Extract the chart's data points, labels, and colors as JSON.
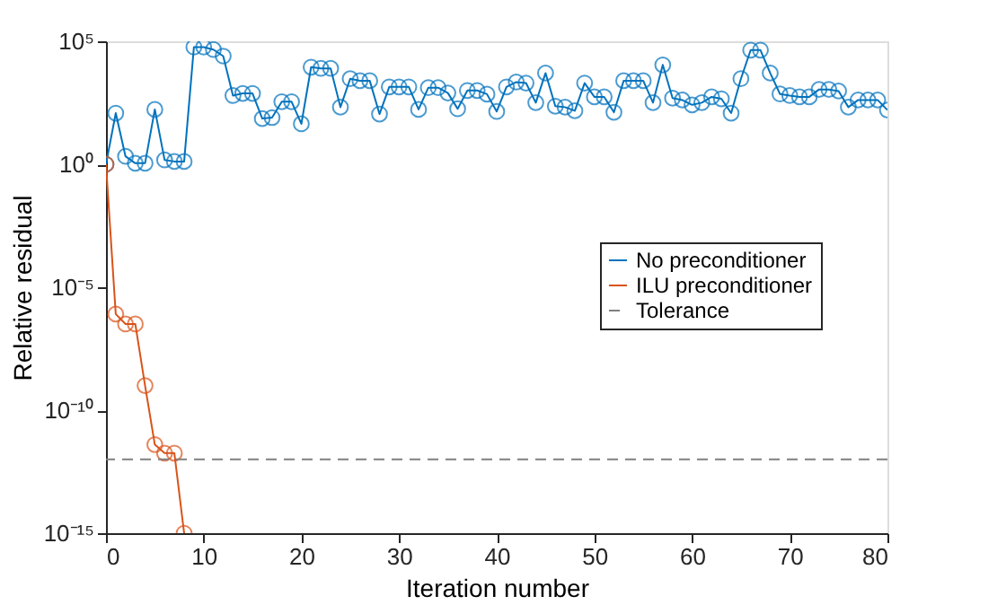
{
  "chart_data": {
    "type": "line",
    "xlabel": "Iteration number",
    "ylabel": "Relative residual",
    "log": "y",
    "grid": false,
    "legend": "right",
    "marker": "circle",
    "xlim": [
      0,
      80
    ],
    "xticks": [
      0,
      10,
      20,
      30,
      40,
      50,
      60,
      70,
      80
    ],
    "ylim": [
      1e-15,
      100000.0
    ],
    "yticks": [
      {
        "value": 1e-15,
        "label": "10⁻¹⁵"
      },
      {
        "value": 1e-10,
        "label": "10⁻¹⁰"
      },
      {
        "value": 1e-05,
        "label": "10⁻⁵"
      },
      {
        "value": 1,
        "label": "10⁰"
      },
      {
        "value": 100000.0,
        "label": "10⁵"
      }
    ],
    "series": [
      {
        "name": "No preconditioner",
        "color": "#0072bd",
        "x": [
          0,
          1,
          2,
          3,
          4,
          5,
          6,
          7,
          8,
          9,
          10,
          11,
          12,
          13,
          14,
          15,
          16,
          17,
          18,
          19,
          20,
          21,
          22,
          23,
          24,
          25,
          26,
          27,
          28,
          29,
          30,
          31,
          32,
          33,
          34,
          35,
          36,
          37,
          38,
          39,
          40,
          41,
          42,
          43,
          44,
          45,
          46,
          47,
          48,
          49,
          50,
          51,
          52,
          53,
          54,
          55,
          56,
          57,
          58,
          59,
          60,
          61,
          62,
          63,
          64,
          65,
          66,
          67,
          68,
          69,
          70,
          71,
          72,
          73,
          74,
          75,
          76,
          77,
          78,
          79,
          80
        ],
        "values": [
          1,
          120,
          2.1,
          1.1,
          1.1,
          170,
          1.5,
          1.3,
          1.3,
          58000,
          58000,
          46000,
          25000,
          620,
          760,
          760,
          72,
          79,
          350,
          350,
          44,
          8900,
          7900,
          7900,
          210,
          3000,
          2500,
          2500,
          110,
          1400,
          1400,
          1400,
          170,
          1300,
          1300,
          790,
          180,
          1000,
          1000,
          710,
          140,
          1400,
          2200,
          2000,
          320,
          5100,
          230,
          210,
          150,
          2000,
          550,
          550,
          130,
          2500,
          2500,
          2500,
          320,
          11000,
          490,
          410,
          260,
          320,
          550,
          460,
          120,
          3000,
          44000,
          44000,
          5100,
          720,
          620,
          550,
          550,
          1100,
          1100,
          950,
          210,
          410,
          410,
          410,
          160
        ]
      },
      {
        "name": "ILU preconditioner",
        "color": "#d95319",
        "x": [
          0,
          1,
          2,
          3,
          4,
          5,
          6,
          7,
          8
        ],
        "values": [
          1,
          8.1e-07,
          3.2e-07,
          3.2e-07,
          1e-09,
          4e-12,
          1.8e-12,
          1.8e-12,
          1e-15
        ]
      }
    ],
    "ref_lines": [
      {
        "axis": "y",
        "value": 1e-12,
        "label": "Tolerance",
        "color": "#808080",
        "line_style": "dashed"
      }
    ]
  }
}
